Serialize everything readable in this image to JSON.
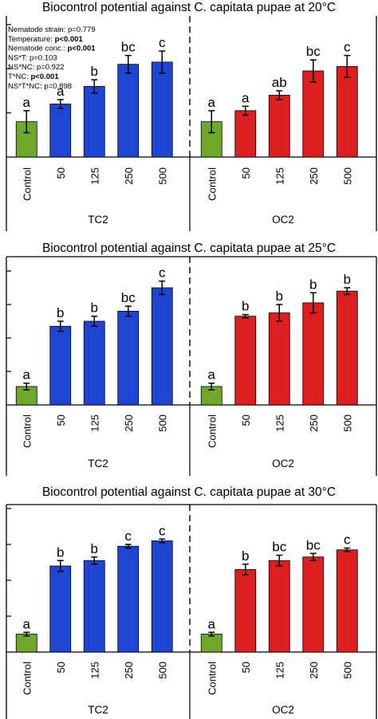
{
  "colors": {
    "control": "#6fa82a",
    "TC2": "#1e46d2",
    "OC2": "#dc1e1e",
    "axis": "#000000"
  },
  "chart_data": [
    {
      "type": "bar",
      "title": "Biocontrol potential against C. capitata pupae at 20°C",
      "group_labels": [
        "TC2",
        "OC2"
      ],
      "categories": [
        "Control",
        "50",
        "125",
        "250",
        "500"
      ],
      "ylim": [
        0,
        100
      ],
      "grid": false,
      "divider": "dashed",
      "groups": [
        {
          "name": "TC2",
          "values": [
            16,
            24,
            32,
            42,
            43
          ],
          "errors": [
            5,
            2,
            3,
            4,
            5
          ],
          "letters": [
            "a",
            "a",
            "b",
            "bc",
            "c"
          ]
        },
        {
          "name": "OC2",
          "values": [
            16,
            21,
            28,
            39,
            41
          ],
          "errors": [
            5,
            2,
            2,
            5,
            5
          ],
          "letters": [
            "a",
            "a",
            "ab",
            "bc",
            "c"
          ]
        }
      ],
      "stats": [
        {
          "label": "Nematode strain: ",
          "value": "p=0.779",
          "bold": false
        },
        {
          "label": "Temperature: ",
          "value": "p<0.001",
          "bold": true
        },
        {
          "label": "Nematode conc.: ",
          "value": "p<0.001",
          "bold": true
        },
        {
          "label": "NS*T: ",
          "value": "p=0.103",
          "bold": false
        },
        {
          "label": "NS*NC: ",
          "value": "p=0.922",
          "bold": false
        },
        {
          "label": "T*NC: ",
          "value": "p<0.001",
          "bold": true
        },
        {
          "label": "NS*T*NC: ",
          "value": "p=0.898",
          "bold": false
        }
      ]
    },
    {
      "type": "bar",
      "title": "Biocontrol potential against C. capitata pupae at 25°C",
      "group_labels": [
        "TC2",
        "OC2"
      ],
      "categories": [
        "Control",
        "50",
        "125",
        "250",
        "500"
      ],
      "ylim": [
        0,
        100
      ],
      "grid": false,
      "divider": "dashed-top-solid-bottom",
      "groups": [
        {
          "name": "TC2",
          "values": [
            11,
            47,
            50,
            56,
            70
          ],
          "errors": [
            2,
            3,
            3,
            3,
            4
          ],
          "letters": [
            "a",
            "b",
            "b",
            "bc",
            "c"
          ]
        },
        {
          "name": "OC2",
          "values": [
            11,
            53,
            55,
            61,
            68
          ],
          "errors": [
            2,
            1,
            5,
            6,
            2
          ],
          "letters": [
            "a",
            "b",
            "b",
            "b",
            "b"
          ]
        }
      ],
      "stats": []
    },
    {
      "type": "bar",
      "title": "Biocontrol potential against C. capitata pupae at 30°C",
      "group_labels": [
        "TC2",
        "OC2"
      ],
      "categories": [
        "Control",
        "50",
        "125",
        "250",
        "500"
      ],
      "ylim": [
        0,
        100
      ],
      "grid": false,
      "divider": "dashed-top-solid-bottom",
      "groups": [
        {
          "name": "TC2",
          "values": [
            10,
            48,
            51,
            59,
            62
          ],
          "errors": [
            1,
            3,
            2,
            1,
            1
          ],
          "letters": [
            "a",
            "b",
            "b",
            "c",
            "c"
          ]
        },
        {
          "name": "OC2",
          "values": [
            10,
            46,
            51,
            53,
            57
          ],
          "errors": [
            1,
            3,
            3,
            2,
            1
          ],
          "letters": [
            "a",
            "b",
            "bc",
            "bc",
            "c"
          ]
        }
      ],
      "stats": []
    }
  ]
}
